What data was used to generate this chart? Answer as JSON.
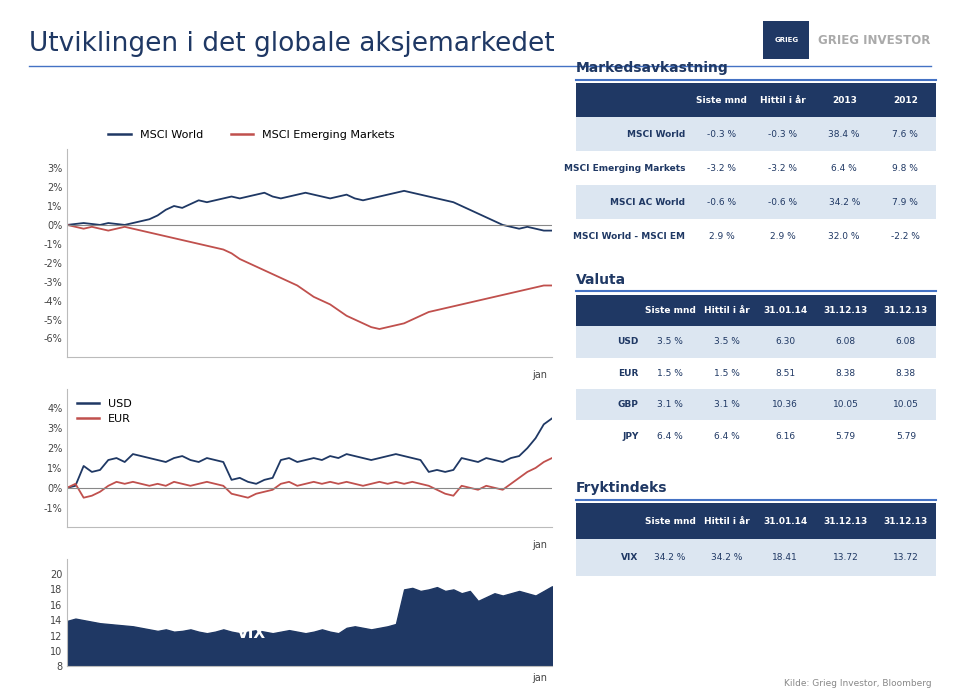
{
  "title": "Utviklingen i det globale aksjemarkedet",
  "bg_color": "#ffffff",
  "header_color": "#1f3864",
  "alt_row_color": "#dce6f1",
  "title_color": "#1f3864",
  "line_color_world": "#1f3864",
  "line_color_em": "#c0504d",
  "line_color_usd": "#1f3864",
  "line_color_eur": "#c0504d",
  "msci_table_title": "Markedsavkastning",
  "msci_table_headers": [
    "",
    "Siste mnd",
    "Hittil i år",
    "2013",
    "2012"
  ],
  "msci_table_rows": [
    [
      "MSCI World",
      "-0.3 %",
      "-0.3 %",
      "38.4 %",
      "7.6 %"
    ],
    [
      "MSCI Emerging Markets",
      "-3.2 %",
      "-3.2 %",
      "6.4 %",
      "9.8 %"
    ],
    [
      "MSCI AC World",
      "-0.6 %",
      "-0.6 %",
      "34.2 %",
      "7.9 %"
    ],
    [
      "MSCI World - MSCI EM",
      "2.9 %",
      "2.9 %",
      "32.0 %",
      "-2.2 %"
    ]
  ],
  "valuta_title": "Valuta",
  "valuta_headers": [
    "",
    "Siste mnd",
    "Hittil i år",
    "31.01.14",
    "31.12.13",
    "31.12.13"
  ],
  "valuta_rows": [
    [
      "USD",
      "3.5 %",
      "3.5 %",
      "6.30",
      "6.08",
      "6.08"
    ],
    [
      "EUR",
      "1.5 %",
      "1.5 %",
      "8.51",
      "8.38",
      "8.38"
    ],
    [
      "GBP",
      "3.1 %",
      "3.1 %",
      "10.36",
      "10.05",
      "10.05"
    ],
    [
      "JPY",
      "6.4 %",
      "6.4 %",
      "6.16",
      "5.79",
      "5.79"
    ]
  ],
  "frykt_title": "Fryktindeks",
  "frykt_headers": [
    "",
    "Siste mnd",
    "Hittil i år",
    "31.01.14",
    "31.12.13",
    "31.12.13"
  ],
  "frykt_rows": [
    [
      "VIX",
      "34.2 %",
      "34.2 %",
      "18.41",
      "13.72",
      "13.72"
    ]
  ],
  "source_text": "Kilde: Grieg Investor, Bloomberg",
  "grieg_text": "GRIEG INVESTOR",
  "world_label": "MSCI World",
  "em_label": "MSCI Emerging Markets",
  "usd_label": "USD",
  "eur_label": "EUR",
  "vix_label": "VIX",
  "jan_label": "jan"
}
